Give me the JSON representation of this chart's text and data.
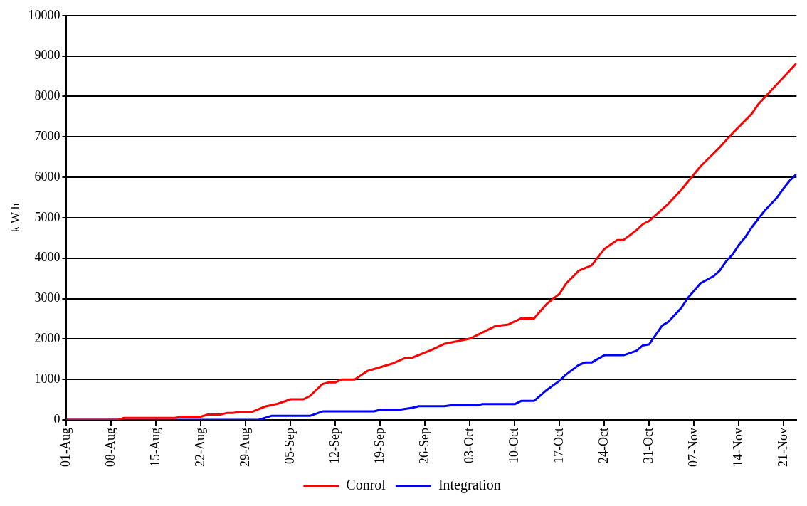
{
  "chart_data": {
    "type": "line",
    "ylabel": "k W h",
    "xlim": [
      "--08-01",
      "--11-23"
    ],
    "ylim": [
      0,
      10000
    ],
    "yticks": [
      0,
      1000,
      2000,
      3000,
      4000,
      5000,
      6000,
      7000,
      8000,
      9000,
      10000
    ],
    "xticks": [
      {
        "value": "--08-01",
        "label": "01-Aug"
      },
      {
        "value": "--08-08",
        "label": "08-Aug"
      },
      {
        "value": "--08-15",
        "label": "15-Aug"
      },
      {
        "value": "--08-22",
        "label": "22-Aug"
      },
      {
        "value": "--08-29",
        "label": "29-Aug"
      },
      {
        "value": "--09-05",
        "label": "05-Sep"
      },
      {
        "value": "--09-12",
        "label": "12-Sep"
      },
      {
        "value": "--09-19",
        "label": "19-Sep"
      },
      {
        "value": "--09-26",
        "label": "26-Sep"
      },
      {
        "value": "--10-03",
        "label": "03-Oct"
      },
      {
        "value": "--10-10",
        "label": "10-Oct"
      },
      {
        "value": "--10-17",
        "label": "17-Oct"
      },
      {
        "value": "--10-24",
        "label": "24-Oct"
      },
      {
        "value": "--10-31",
        "label": "31-Oct"
      },
      {
        "value": "--11-07",
        "label": "07-Nov"
      },
      {
        "value": "--11-14",
        "label": "14-Nov"
      },
      {
        "value": "--11-21",
        "label": "21-Nov"
      }
    ],
    "grid": "y",
    "legend": "bottom",
    "marker": "none",
    "line_style": "solid",
    "series": [
      {
        "name": "Conrol",
        "color": "#ff0000",
        "x": [
          "--08-01",
          "--08-09",
          "--08-10",
          "--08-18",
          "--08-19",
          "--08-22",
          "--08-23",
          "--08-25",
          "--08-26",
          "--08-27",
          "--08-28",
          "--08-30",
          "--09-01",
          "--09-03",
          "--09-05",
          "--09-07",
          "--09-08",
          "--09-10",
          "--09-11",
          "--09-12",
          "--09-13",
          "--09-15",
          "--09-17",
          "--09-20",
          "--09-21",
          "--09-23",
          "--09-24",
          "--09-27",
          "--09-29",
          "--10-03",
          "--10-07",
          "--10-09",
          "--10-11",
          "--10-13",
          "--10-15",
          "--10-17",
          "--10-18",
          "--10-20",
          "--10-22",
          "--10-24",
          "--10-26",
          "--10-27",
          "--10-29",
          "--10-30",
          "--10-31",
          "--11-03",
          "--11-05",
          "--11-08",
          "--11-11",
          "--11-13",
          "--11-16",
          "--11-17",
          "--11-20",
          "--11-22",
          "--11-23"
        ],
        "values": [
          0,
          0,
          50,
          50,
          80,
          80,
          130,
          130,
          170,
          170,
          200,
          200,
          330,
          400,
          510,
          510,
          590,
          890,
          930,
          930,
          1000,
          1000,
          1210,
          1350,
          1400,
          1540,
          1540,
          1730,
          1880,
          2010,
          2320,
          2360,
          2510,
          2510,
          2870,
          3120,
          3370,
          3690,
          3820,
          4230,
          4450,
          4450,
          4690,
          4840,
          4920,
          5350,
          5690,
          6270,
          6740,
          7090,
          7570,
          7800,
          8310,
          8650,
          8820
        ]
      },
      {
        "name": "Integration",
        "color": "#0000ff",
        "x": [
          "--08-01",
          "--08-31",
          "--09-02",
          "--09-08",
          "--09-10",
          "--09-18",
          "--09-19",
          "--09-22",
          "--09-24",
          "--09-25",
          "--09-29",
          "--09-30",
          "--10-04",
          "--10-05",
          "--10-10",
          "--10-11",
          "--10-13",
          "--10-15",
          "--10-17",
          "--10-18",
          "--10-20",
          "--10-21",
          "--10-22",
          "--10-24",
          "--10-27",
          "--10-29",
          "--10-30",
          "--10-31",
          "--11-02",
          "--11-03",
          "--11-05",
          "--11-06",
          "--11-08",
          "--11-10",
          "--11-11",
          "--11-12",
          "--11-13",
          "--11-14",
          "--11-15",
          "--11-16",
          "--11-18",
          "--11-20",
          "--11-21",
          "--11-22",
          "--11-23"
        ],
        "values": [
          0,
          0,
          100,
          100,
          210,
          210,
          250,
          250,
          300,
          340,
          340,
          360,
          360,
          390,
          390,
          470,
          470,
          740,
          970,
          1120,
          1360,
          1420,
          1420,
          1600,
          1600,
          1710,
          1840,
          1870,
          2330,
          2430,
          2770,
          3010,
          3380,
          3550,
          3690,
          3920,
          4090,
          4330,
          4520,
          4760,
          5170,
          5510,
          5730,
          5930,
          6080
        ]
      }
    ]
  }
}
